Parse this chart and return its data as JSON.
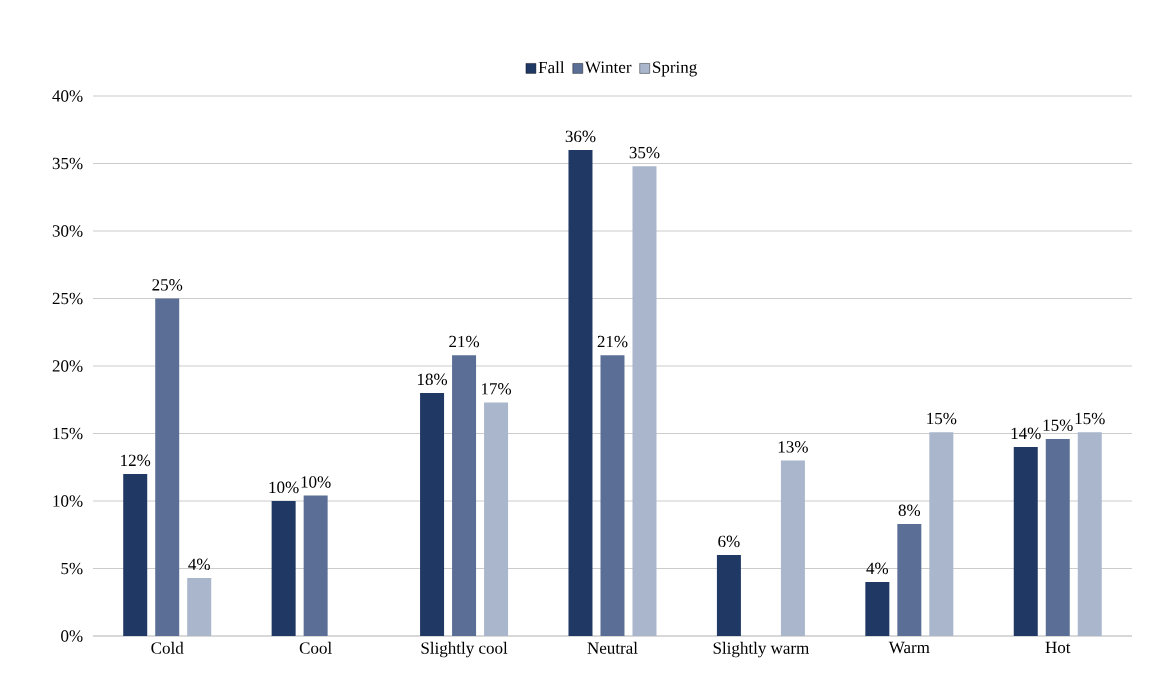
{
  "chart_data": {
    "type": "bar",
    "categories": [
      "Cold",
      "Cool",
      "Slightly cool",
      "Neutral",
      "Slightly warm",
      "Warm",
      "Hot"
    ],
    "series": [
      {
        "name": "Fall",
        "color": "#203864",
        "values": [
          12,
          10,
          18,
          36,
          6,
          4,
          14
        ],
        "value_labels": [
          "12%",
          "10%",
          "18%",
          "36%",
          "6%",
          "4%",
          "14%"
        ]
      },
      {
        "name": "Winter",
        "color": "#5b6f96",
        "values": [
          25,
          10.4,
          20.8,
          20.8,
          null,
          8.3,
          14.6
        ],
        "value_labels": [
          "25%",
          "10%",
          "21%",
          "21%",
          null,
          "8%",
          "15%"
        ]
      },
      {
        "name": "Spring",
        "color": "#a9b6cc",
        "values": [
          4.3,
          null,
          17.3,
          34.8,
          13,
          15.1,
          15.1
        ],
        "value_labels": [
          "4%",
          null,
          "17%",
          "35%",
          "13%",
          "15%",
          "15%"
        ]
      }
    ],
    "ylim": [
      0,
      40
    ],
    "yticks": [
      {
        "value": 0,
        "label": "0%"
      },
      {
        "value": 5,
        "label": "5%"
      },
      {
        "value": 10,
        "label": "10%"
      },
      {
        "value": 15,
        "label": "15%"
      },
      {
        "value": 20,
        "label": "20%"
      },
      {
        "value": 25,
        "label": "25%"
      },
      {
        "value": 30,
        "label": "30%"
      },
      {
        "value": 35,
        "label": "35%"
      },
      {
        "value": 40,
        "label": "40%"
      }
    ],
    "grid": "y",
    "legend": "top"
  }
}
